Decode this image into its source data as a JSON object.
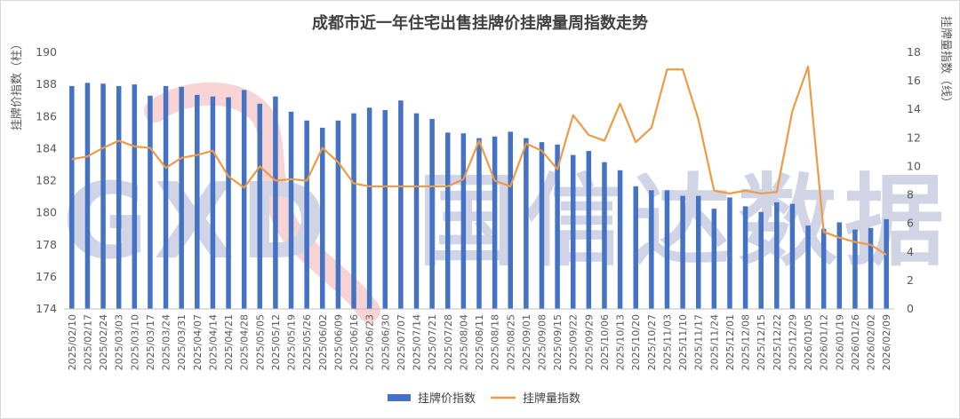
{
  "chart_data": {
    "type": "bar+line",
    "title": "成都市近一年住宅出售挂牌价挂牌量周指数走势",
    "y_left_label": "挂牌价指数（柱）",
    "y_right_label": "挂牌量指数（线）",
    "y_left_range": [
      174,
      190
    ],
    "y_left_ticks": [
      "174",
      "176",
      "178",
      "180",
      "182",
      "184",
      "186",
      "188",
      "190"
    ],
    "y_right_range": [
      0,
      18
    ],
    "y_right_ticks": [
      "0",
      "2",
      "4",
      "6",
      "8",
      "10",
      "12",
      "14",
      "16",
      "18"
    ],
    "grid": false,
    "legend_position": "bottom",
    "watermark": "GXD 国信达数据",
    "categories": [
      "2025/02/10",
      "2025/02/17",
      "2025/02/24",
      "2025/03/03",
      "2025/03/10",
      "2025/03/17",
      "2025/03/24",
      "2025/03/31",
      "2025/04/07",
      "2025/04/14",
      "2025/04/21",
      "2025/04/28",
      "2025/05/05",
      "2025/05/12",
      "2025/05/19",
      "2025/05/26",
      "2025/06/02",
      "2025/06/09",
      "2025/06/16",
      "2025/06/23",
      "2025/06/30",
      "2025/07/07",
      "2025/07/14",
      "2025/07/21",
      "2025/07/28",
      "2025/08/04",
      "2025/08/11",
      "2025/08/18",
      "2025/08/25",
      "2025/09/01",
      "2025/09/08",
      "2025/09/15",
      "2025/09/22",
      "2025/09/29",
      "2025/10/06",
      "2025/10/13",
      "2025/10/20",
      "2025/10/27",
      "2025/11/03",
      "2025/11/10",
      "2025/11/17",
      "2025/11/24",
      "2025/12/01",
      "2025/12/08",
      "2025/12/15",
      "2025/12/22",
      "2025/12/29",
      "2026/01/05",
      "2026/01/12",
      "2026/01/19",
      "2026/01/26",
      "2026/02/02",
      "2026/02/09"
    ],
    "series": [
      {
        "name": "挂牌价指数",
        "type": "bar",
        "axis": "left",
        "color": "#4472C4",
        "values": [
          187.9,
          188.1,
          188.05,
          187.9,
          188.0,
          187.3,
          187.9,
          187.85,
          187.35,
          187.25,
          187.2,
          187.65,
          186.8,
          187.25,
          186.3,
          185.75,
          185.3,
          185.75,
          186.2,
          186.55,
          186.4,
          187.0,
          186.2,
          185.85,
          185.0,
          184.95,
          184.65,
          184.75,
          185.05,
          184.65,
          184.4,
          184.25,
          183.6,
          183.85,
          183.15,
          182.65,
          181.65,
          181.4,
          181.4,
          181.05,
          181.05,
          180.25,
          180.95,
          180.4,
          180.05,
          180.65,
          180.55,
          179.2,
          179.0,
          179.4,
          178.95,
          179.05,
          179.6
        ]
      },
      {
        "name": "挂牌量指数",
        "type": "line",
        "axis": "right",
        "color": "#ED9B46",
        "values": [
          10.5,
          10.7,
          11.3,
          11.8,
          11.4,
          11.3,
          9.9,
          10.6,
          10.8,
          11.1,
          9.3,
          8.5,
          10.0,
          9.0,
          9.1,
          9.0,
          11.3,
          10.3,
          8.8,
          8.6,
          8.6,
          8.6,
          8.6,
          8.6,
          8.6,
          9.1,
          11.8,
          9.0,
          8.6,
          11.6,
          11.1,
          9.8,
          13.6,
          12.2,
          11.8,
          14.4,
          11.7,
          12.7,
          16.8,
          16.8,
          13.3,
          8.3,
          8.1,
          8.3,
          8.1,
          8.2,
          13.9,
          17.0,
          5.4,
          5.0,
          4.7,
          4.5,
          3.8
        ]
      }
    ]
  }
}
